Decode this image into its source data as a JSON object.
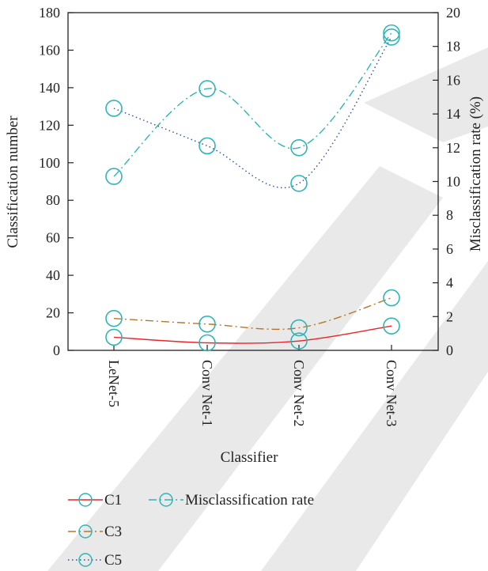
{
  "chart_data": {
    "type": "line",
    "xlabel": "Classifier",
    "ylabel": "Classification number",
    "y2label": "Misclassification rate (%)",
    "categories": [
      "LeNet-5",
      "Conv Net-1",
      "Conv Net-2",
      "Conv Net-3"
    ],
    "ylim": [
      0,
      180
    ],
    "y2lim": [
      0,
      20
    ],
    "yticks": [
      0,
      20,
      40,
      60,
      80,
      100,
      120,
      140,
      160,
      180
    ],
    "y2ticks": [
      0,
      2,
      4,
      6,
      8,
      10,
      12,
      14,
      16,
      18,
      20
    ],
    "grid": false,
    "legend_position": "bottom",
    "series": [
      {
        "name": "C1",
        "axis": "left",
        "values": [
          7,
          4,
          5,
          13
        ],
        "color": "#e8262b",
        "dash": "solid"
      },
      {
        "name": "C3",
        "axis": "left",
        "values": [
          17,
          14,
          12,
          28
        ],
        "color": "#b5762a",
        "dash": "dashdot"
      },
      {
        "name": "C5",
        "axis": "left",
        "values": [
          129,
          109,
          89,
          167
        ],
        "color": "#2a4f9e",
        "dash": "dotted"
      },
      {
        "name": "Misclassification rate",
        "axis": "right",
        "values": [
          10.3,
          15.5,
          12.0,
          18.8
        ],
        "color": "#2fb5b5",
        "dash": "dashdot"
      }
    ],
    "legend_layout": [
      [
        "C1",
        "Misclassification rate"
      ],
      [
        "C3"
      ],
      [
        "C5"
      ]
    ]
  },
  "colors": {
    "axis": "#222222",
    "marker": "#2fb5b5",
    "watermark": "#e3e3e3"
  }
}
